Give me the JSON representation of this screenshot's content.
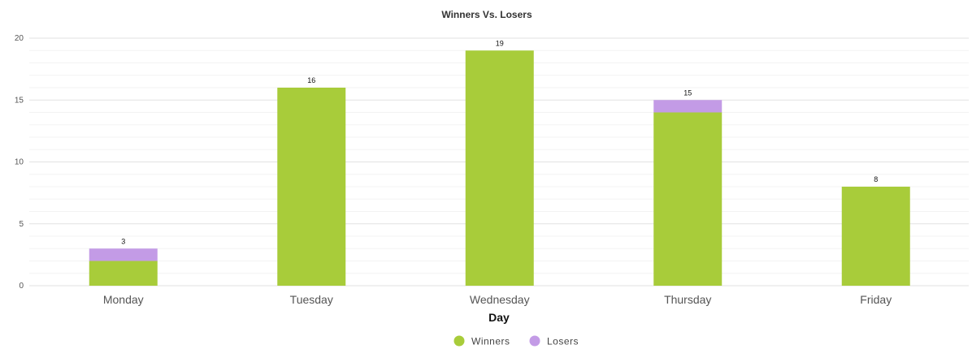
{
  "chart_data": {
    "type": "bar",
    "stacked": true,
    "title": "Winners Vs. Losers",
    "xlabel": "Day",
    "ylabel": "",
    "categories": [
      "Monday",
      "Tuesday",
      "Wednesday",
      "Thursday",
      "Friday"
    ],
    "series": [
      {
        "name": "Winners",
        "values": [
          2,
          16,
          19,
          14,
          8
        ],
        "color": "#a8cc3a"
      },
      {
        "name": "Losers",
        "values": [
          1,
          0,
          0,
          1,
          0
        ],
        "color": "#c39be6"
      }
    ],
    "totals": [
      3,
      16,
      19,
      15,
      8
    ],
    "ylim": [
      0,
      20
    ],
    "yticks": [
      0,
      5,
      10,
      15,
      20
    ],
    "grid": true,
    "legend_position": "bottom-center"
  }
}
